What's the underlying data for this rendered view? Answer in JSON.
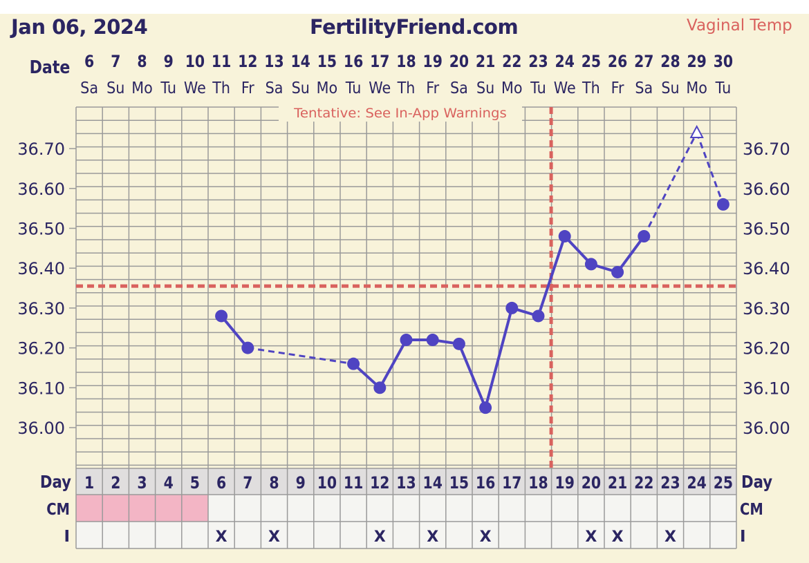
{
  "header": {
    "date": "Jan 06, 2024",
    "site": "FertilityFriend.com",
    "temp_type": "Vaginal Temp"
  },
  "labels": {
    "date_row": "Date",
    "day_row": "Day",
    "cm_row": "CM",
    "i_row": "I",
    "warning": "Tentative: See In-App Warnings"
  },
  "colors": {
    "background": "#f8f3da",
    "grid": "#9a9a9a",
    "series": "#4f44c2",
    "coverline": "#d9625e",
    "navy_text": "#2b2562",
    "menstruation": "#f3b5c5",
    "day_row_bg": "#e0dede",
    "cell_bg": "#f5f5f2"
  },
  "chart_data": {
    "type": "line",
    "title": "",
    "y_ticks": [
      "36.70",
      "36.60",
      "36.50",
      "36.40",
      "36.30",
      "36.20",
      "36.10",
      "36.00"
    ],
    "dates": [
      "6",
      "7",
      "8",
      "9",
      "10",
      "11",
      "12",
      "13",
      "14",
      "15",
      "16",
      "17",
      "18",
      "19",
      "20",
      "21",
      "22",
      "23",
      "24",
      "25",
      "26",
      "27",
      "28",
      "29",
      "30"
    ],
    "weekdays": [
      "Sa",
      "Su",
      "Mo",
      "Tu",
      "We",
      "Th",
      "Fr",
      "Sa",
      "Su",
      "Mo",
      "Tu",
      "We",
      "Th",
      "Fr",
      "Sa",
      "Su",
      "Mo",
      "Tu",
      "We",
      "Th",
      "Fr",
      "Sa",
      "Su",
      "Mo",
      "Tu"
    ],
    "cycle_days": [
      1,
      2,
      3,
      4,
      5,
      6,
      7,
      8,
      9,
      10,
      11,
      12,
      13,
      14,
      15,
      16,
      17,
      18,
      19,
      20,
      21,
      22,
      23,
      24,
      25
    ],
    "temperatures": [
      null,
      null,
      null,
      null,
      null,
      36.28,
      36.2,
      null,
      null,
      null,
      36.16,
      36.1,
      36.22,
      36.22,
      36.21,
      36.05,
      36.3,
      36.28,
      36.48,
      36.41,
      36.39,
      36.48,
      null,
      36.74,
      36.56
    ],
    "discarded_days": [
      24
    ],
    "coverline": 36.355,
    "ovulation_day": 18,
    "cm": [
      "menstruation",
      "menstruation",
      "menstruation",
      "menstruation",
      "menstruation",
      "",
      "",
      "",
      "",
      "",
      "",
      "",
      "",
      "",
      "",
      "",
      "",
      "",
      "",
      "",
      "",
      "",
      "",
      "",
      ""
    ],
    "intercourse": [
      "",
      "",
      "",
      "",
      "",
      "X",
      "",
      "X",
      "",
      "",
      "",
      "X",
      "",
      "X",
      "",
      "X",
      "",
      "",
      "",
      "X",
      "X",
      "",
      "X",
      "",
      ""
    ]
  }
}
